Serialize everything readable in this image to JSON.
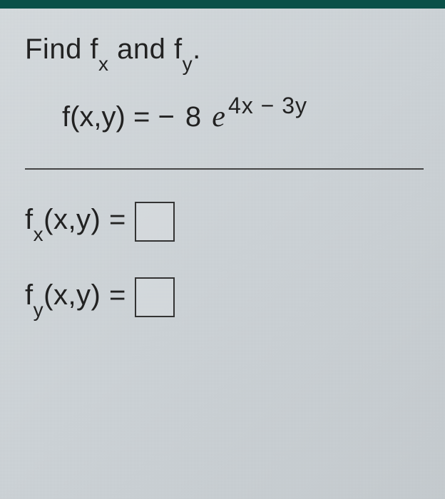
{
  "prompt": {
    "prefix": "Find f",
    "sub1": "x",
    "mid": " and f",
    "sub2": "y",
    "suffix": "."
  },
  "equation": {
    "lhs": "f(x,y) = ",
    "coef": " − 8 ",
    "base": "e",
    "exp": "4x − 3y"
  },
  "answers": {
    "fx": {
      "label_pre": "f",
      "label_sub": "x",
      "label_post": "(x,y) ="
    },
    "fy": {
      "label_pre": "f",
      "label_sub": "y",
      "label_post": "(x,y) ="
    }
  },
  "style": {
    "top_bar_color": "#0a5048",
    "bg_color": "#d0d6da",
    "text_color": "#222",
    "box_border": "#333",
    "divider_color": "#444",
    "main_fontsize": 40,
    "sub_fontsize": 28,
    "exp_fontsize": 32
  }
}
